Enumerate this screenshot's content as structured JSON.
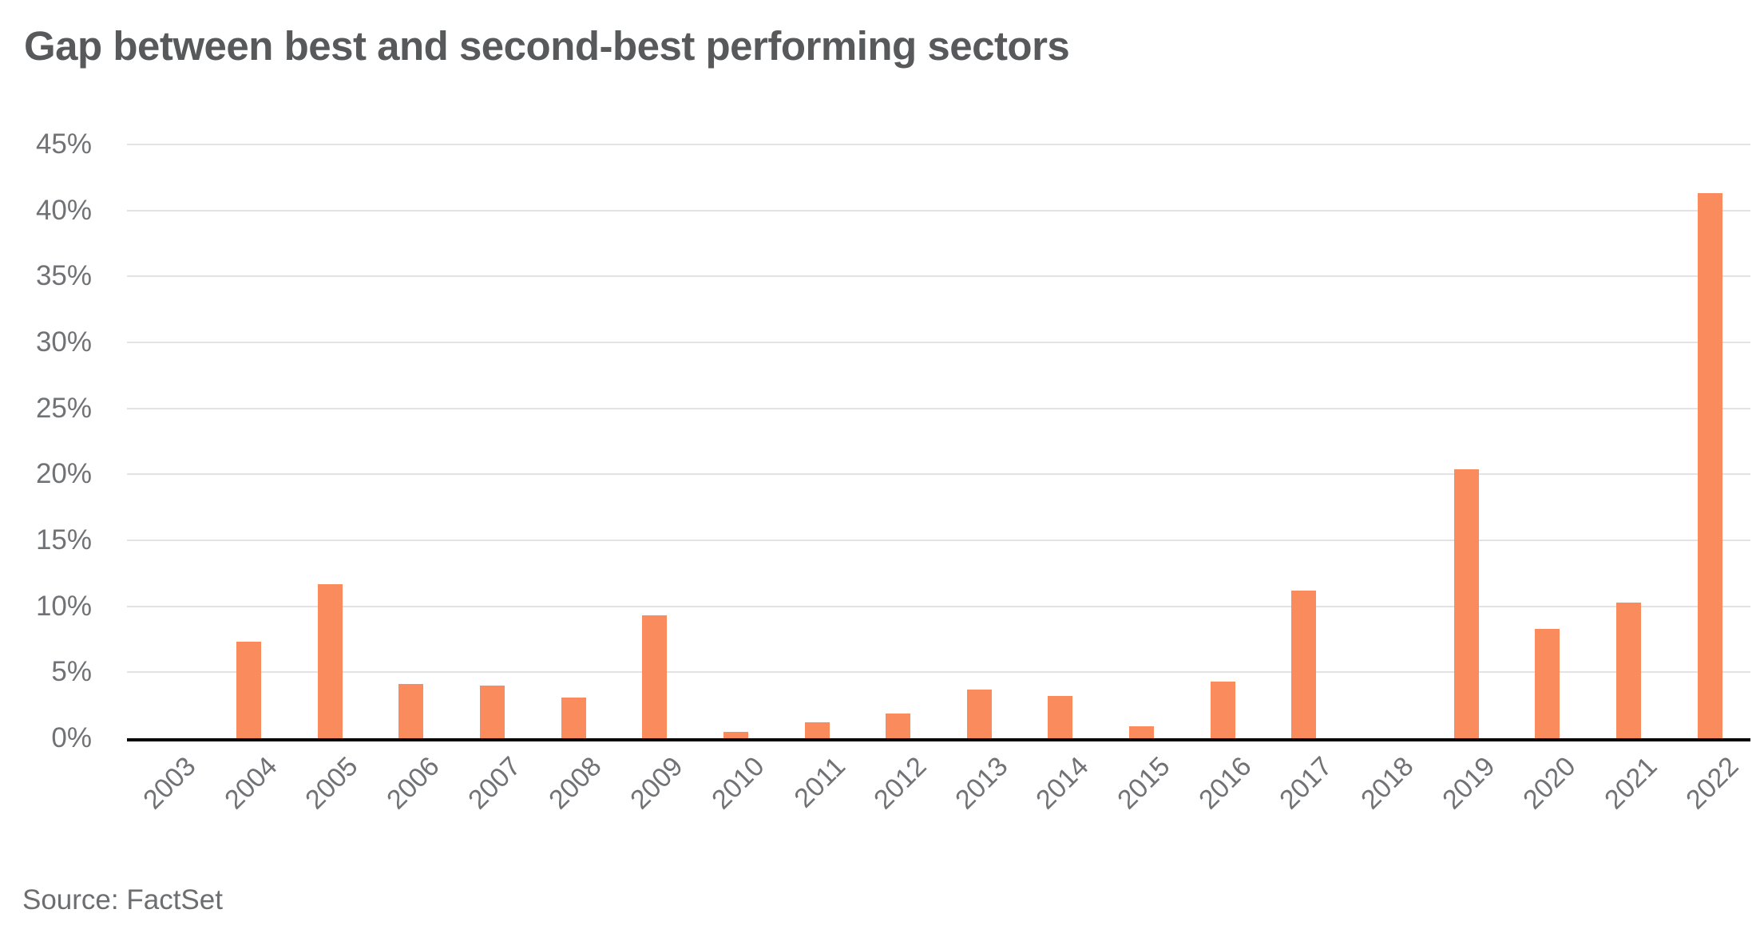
{
  "title": "Gap between best and second-best performing sectors",
  "source": "Source: FactSet",
  "colors": {
    "bar": "#F98B5C",
    "title_text": "#58595B",
    "tick_text": "#717275",
    "source_text": "#6D6E70",
    "gridline": "#E3E3E3",
    "axis_line": "#000000",
    "background": "#FFFFFF"
  },
  "chart_data": {
    "type": "bar",
    "title": "Gap between best and second-best performing sectors",
    "categories": [
      "2003",
      "2004",
      "2005",
      "2006",
      "2007",
      "2008",
      "2009",
      "2010",
      "2011",
      "2012",
      "2013",
      "2014",
      "2015",
      "2016",
      "2017",
      "2018",
      "2019",
      "2020",
      "2021",
      "2022"
    ],
    "values": [
      0,
      7.3,
      11.7,
      4.1,
      4.0,
      3.1,
      9.3,
      0.5,
      1.2,
      1.9,
      3.7,
      3.2,
      0.9,
      4.3,
      11.2,
      0,
      20.4,
      8.3,
      10.3,
      41.3
    ],
    "unit": "%",
    "xlabel": "",
    "ylabel": "",
    "ylim": [
      0,
      45
    ],
    "ytick_step": 5,
    "ytick_labels": [
      "0%",
      "5%",
      "10%",
      "15%",
      "20%",
      "25%",
      "30%",
      "35%",
      "40%",
      "45%"
    ],
    "grid": true,
    "legend": false,
    "bar_color": "#F98B5C",
    "xtick_rotation_deg": -45,
    "annotations": []
  }
}
